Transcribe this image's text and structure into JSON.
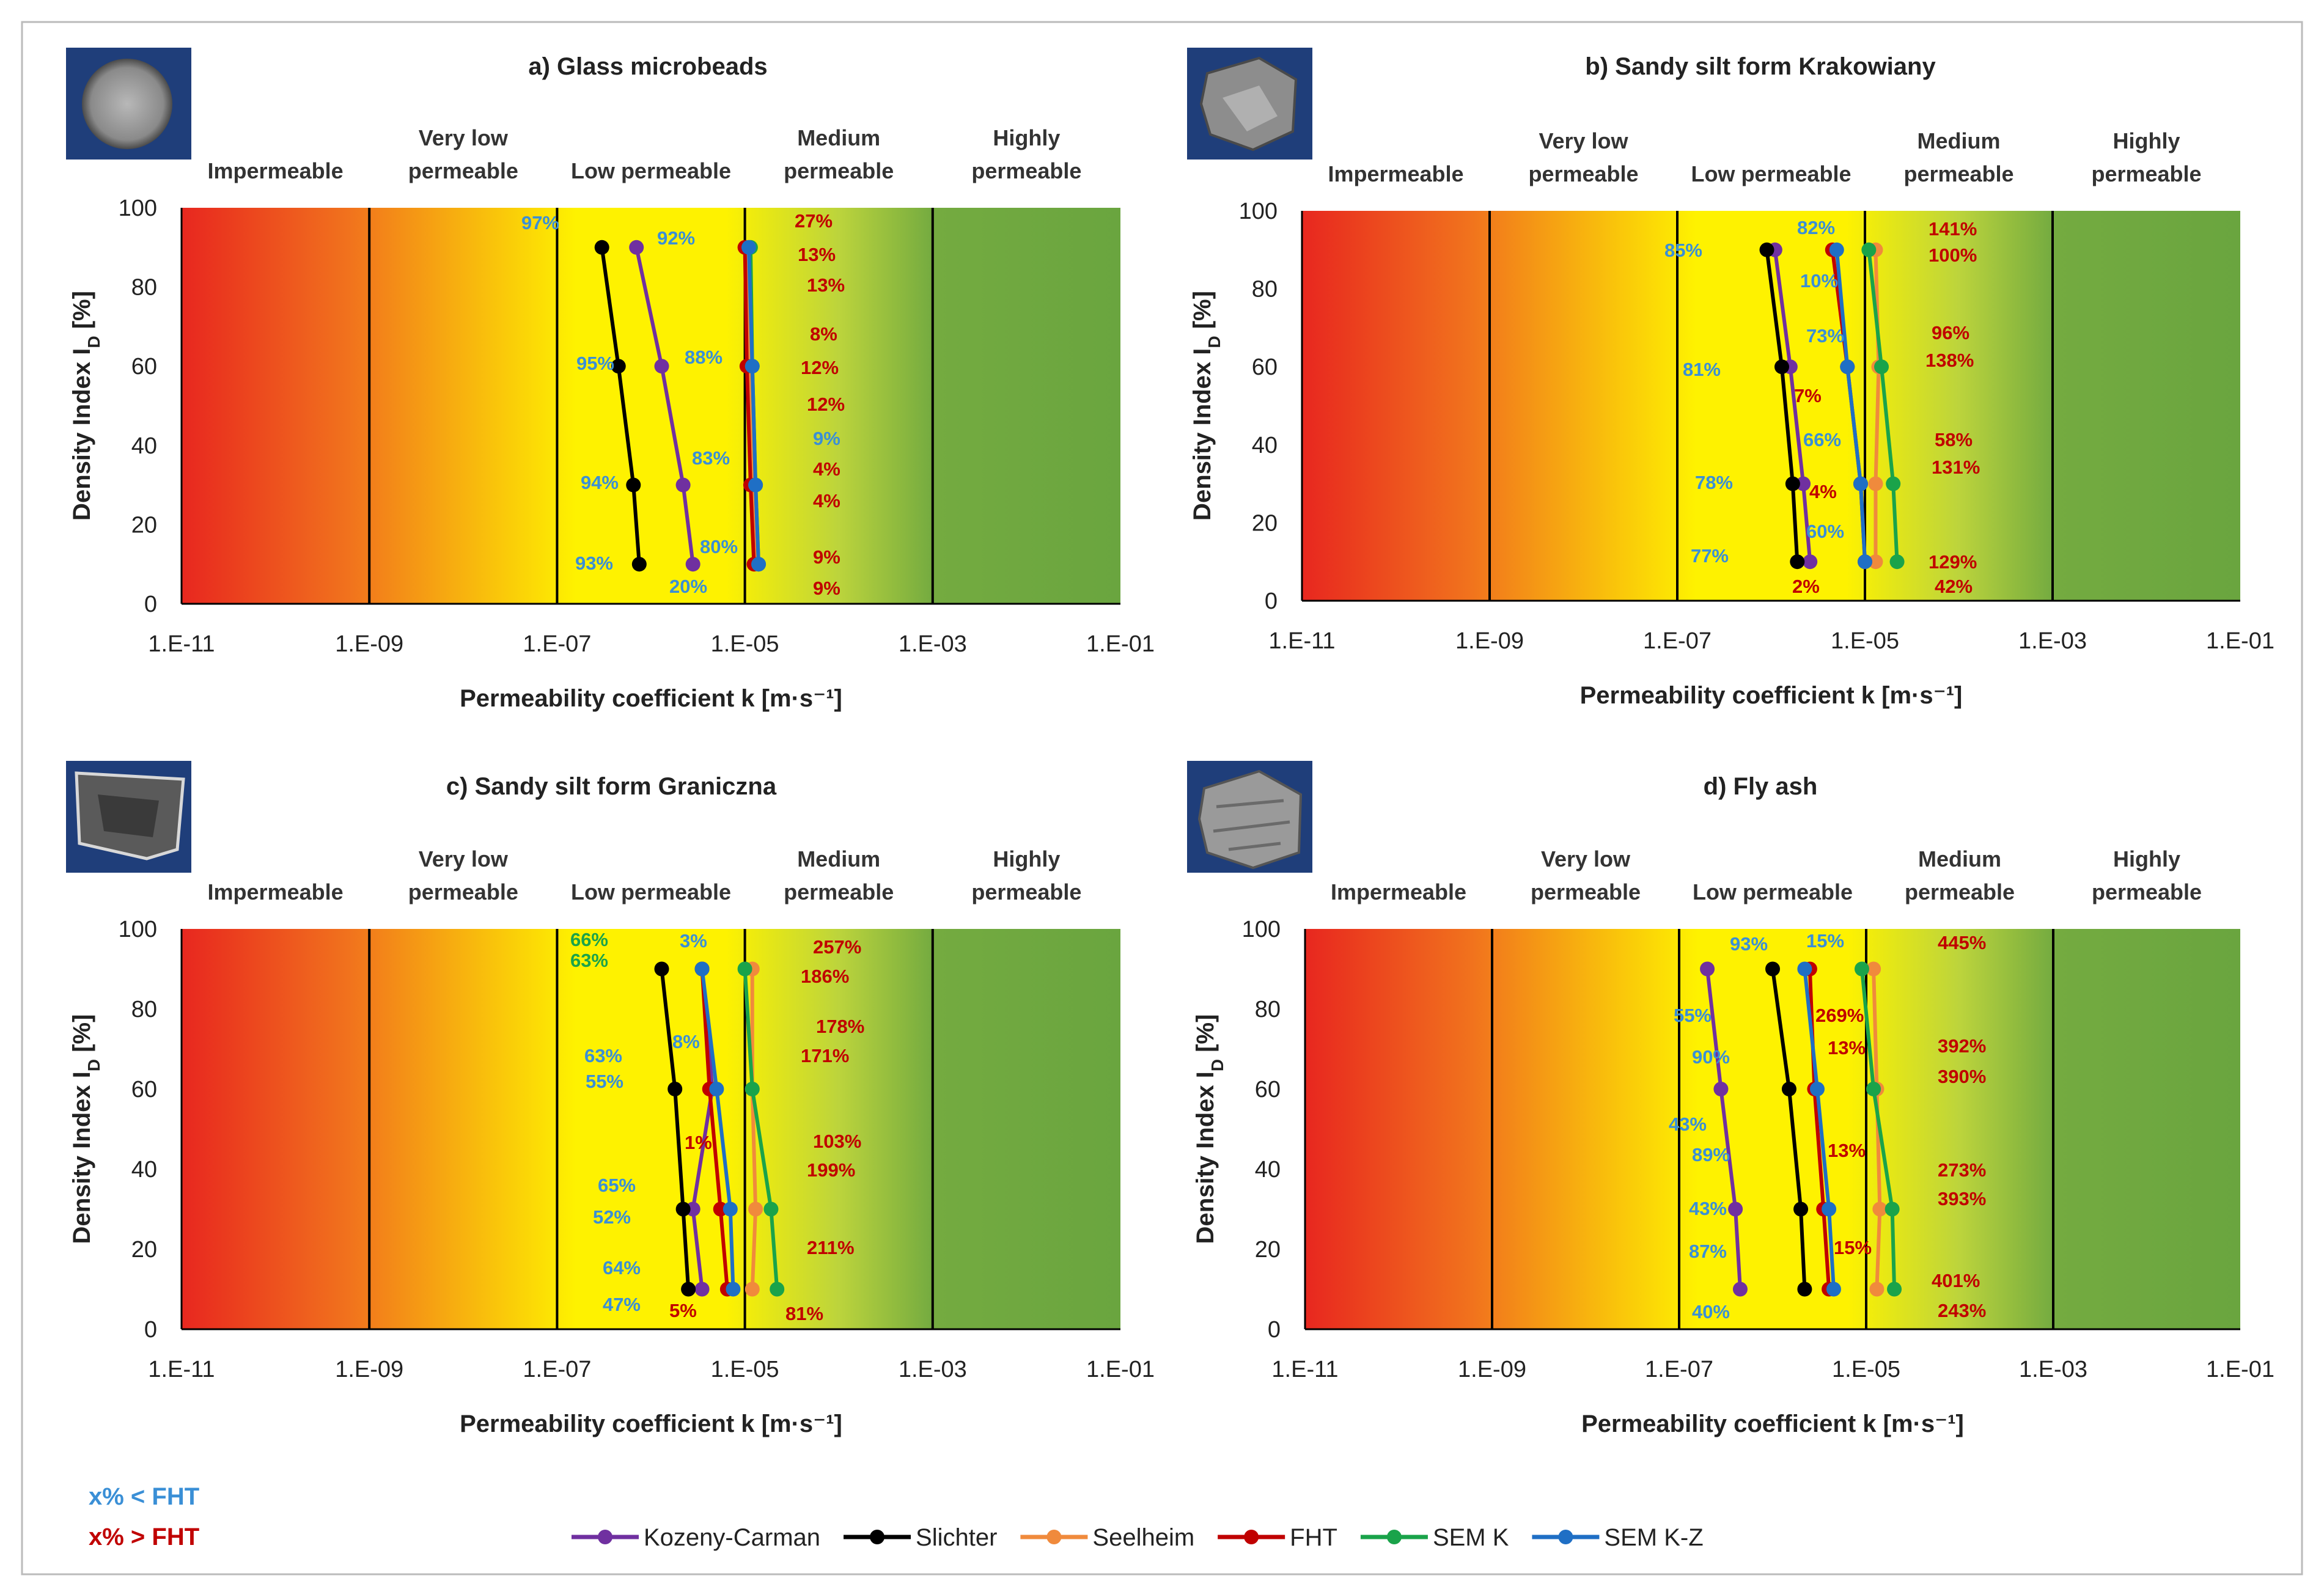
{
  "legend": {
    "below_note": "x% < FHT",
    "above_note": "x% > FHT",
    "below_color": "#3a8fd6",
    "above_color": "#c00000"
  },
  "colors": {
    "Kozeny-Carman": "#7030a0",
    "Slichter": "#000000",
    "Seelheim": "#f08a3c",
    "FHT": "#c00000",
    "SEM K": "#1aa34a",
    "SEM K-Z": "#1f6fc5"
  },
  "series_order": [
    "Kozeny-Carman",
    "Slichter",
    "Seelheim",
    "FHT",
    "SEM K",
    "SEM K-Z"
  ],
  "chart_data": [
    {
      "type": "line",
      "id": "a",
      "title": "a)  Glass microbeads",
      "xlabel": "Permeability coefficient k [m·s⁻¹]",
      "ylabel": "Density Index I_D [%]",
      "xscale": "log",
      "xlim": [
        1e-11,
        0.1
      ],
      "ylim": [
        0,
        100
      ],
      "x_ticks": [
        "1.E-11",
        "1.E-09",
        "1.E-07",
        "1.E-05",
        "1.E-03",
        "1.E-01"
      ],
      "y_ticks": [
        "0",
        "20",
        "40",
        "60",
        "80",
        "100"
      ],
      "zones": [
        "Impermeable",
        "Very low|permeable",
        "Low permeable",
        "Medium|permeable",
        "Highly|permeable"
      ],
      "y": [
        90,
        60,
        30,
        10
      ],
      "series": [
        {
          "name": "Kozeny-Carman",
          "x": [
            7e-07,
            1.3e-06,
            2.2e-06,
            2.8e-06
          ]
        },
        {
          "name": "Slichter",
          "x": [
            3e-07,
            4.5e-07,
            6.5e-07,
            7.5e-07
          ]
        },
        {
          "name": "Seelheim",
          "x": [
            1.1e-05,
            1.1e-05,
            1.2e-05,
            1.3e-05
          ]
        },
        {
          "name": "FHT",
          "x": [
            1e-05,
            1.05e-05,
            1.15e-05,
            1.25e-05
          ]
        },
        {
          "name": "SEM K",
          "x": [
            1.15e-05,
            1.2e-05,
            1.3e-05,
            1.4e-05
          ]
        },
        {
          "name": "SEM K-Z",
          "x": [
            1.1e-05,
            1.2e-05,
            1.3e-05,
            1.4e-05
          ]
        }
      ],
      "annotations": [
        {
          "text": "97%",
          "color": "#3a8fd6"
        },
        {
          "text": "92%",
          "color": "#3a8fd6"
        },
        {
          "text": "95%",
          "color": "#3a8fd6"
        },
        {
          "text": "88%",
          "color": "#3a8fd6"
        },
        {
          "text": "94%",
          "color": "#3a8fd6"
        },
        {
          "text": "83%",
          "color": "#3a8fd6"
        },
        {
          "text": "93%",
          "color": "#3a8fd6"
        },
        {
          "text": "80%",
          "color": "#3a8fd6"
        },
        {
          "text": "20%",
          "color": "#3a8fd6"
        },
        {
          "text": "27%",
          "color": "#c00000"
        },
        {
          "text": "13%",
          "color": "#c00000"
        },
        {
          "text": "13%",
          "color": "#c00000"
        },
        {
          "text": "8%",
          "color": "#c00000"
        },
        {
          "text": "12%",
          "color": "#c00000"
        },
        {
          "text": "12%",
          "color": "#c00000"
        },
        {
          "text": "9%",
          "color": "#3a8fd6"
        },
        {
          "text": "4%",
          "color": "#c00000"
        },
        {
          "text": "4%",
          "color": "#c00000"
        },
        {
          "text": "9%",
          "color": "#c00000"
        },
        {
          "text": "9%",
          "color": "#c00000"
        }
      ]
    },
    {
      "type": "line",
      "id": "b",
      "title": "b)  Sandy silt form Krakowiany",
      "xlabel": "Permeability coefficient k [m·s⁻¹]",
      "ylabel": "Density Index I_D [%]",
      "xscale": "log",
      "xlim": [
        1e-11,
        0.1
      ],
      "ylim": [
        0,
        100
      ],
      "x_ticks": [
        "1.E-11",
        "1.E-09",
        "1.E-07",
        "1.E-05",
        "1.E-03",
        "1.E-01"
      ],
      "y_ticks": [
        "0",
        "20",
        "40",
        "60",
        "80",
        "100"
      ],
      "zones": [
        "Impermeable",
        "Very low|permeable",
        "Low permeable",
        "Medium|permeable",
        "Highly|permeable"
      ],
      "y": [
        90,
        60,
        30,
        10
      ],
      "series": [
        {
          "name": "Kozeny-Carman",
          "x": [
            1.1e-06,
            1.6e-06,
            2.2e-06,
            2.6e-06
          ]
        },
        {
          "name": "Slichter",
          "x": [
            9e-07,
            1.3e-06,
            1.7e-06,
            1.9e-06
          ]
        },
        {
          "name": "Seelheim",
          "x": [
            1.3e-05,
            1.4e-05,
            1.3e-05,
            1.3e-05
          ]
        },
        {
          "name": "FHT",
          "x": [
            4.5e-06,
            6.5e-06,
            9e-06,
            1e-05
          ]
        },
        {
          "name": "SEM K",
          "x": [
            1.1e-05,
            1.5e-05,
            2e-05,
            2.2e-05
          ]
        },
        {
          "name": "SEM K-Z",
          "x": [
            5e-06,
            6.5e-06,
            9e-06,
            1e-05
          ]
        }
      ],
      "annotations": [
        {
          "text": "85%",
          "color": "#3a8fd6"
        },
        {
          "text": "82%",
          "color": "#3a8fd6"
        },
        {
          "text": "10%",
          "color": "#3a8fd6"
        },
        {
          "text": "81%",
          "color": "#3a8fd6"
        },
        {
          "text": "73%",
          "color": "#3a8fd6"
        },
        {
          "text": "7%",
          "color": "#c00000"
        },
        {
          "text": "78%",
          "color": "#3a8fd6"
        },
        {
          "text": "66%",
          "color": "#3a8fd6"
        },
        {
          "text": "4%",
          "color": "#c00000"
        },
        {
          "text": "77%",
          "color": "#3a8fd6"
        },
        {
          "text": "60%",
          "color": "#3a8fd6"
        },
        {
          "text": "2%",
          "color": "#c00000"
        },
        {
          "text": "141%",
          "color": "#c00000"
        },
        {
          "text": "100%",
          "color": "#c00000"
        },
        {
          "text": "96%",
          "color": "#c00000"
        },
        {
          "text": "138%",
          "color": "#c00000"
        },
        {
          "text": "58%",
          "color": "#c00000"
        },
        {
          "text": "131%",
          "color": "#c00000"
        },
        {
          "text": "129%",
          "color": "#c00000"
        },
        {
          "text": "42%",
          "color": "#c00000"
        }
      ]
    },
    {
      "type": "line",
      "id": "c",
      "title": "c)  Sandy silt form Graniczna",
      "xlabel": "Permeability coefficient k [m·s⁻¹]",
      "ylabel": "Density Index I_D [%]",
      "xscale": "log",
      "xlim": [
        1e-11,
        0.1
      ],
      "ylim": [
        0,
        100
      ],
      "x_ticks": [
        "1.E-11",
        "1.E-09",
        "1.E-07",
        "1.E-05",
        "1.E-03",
        "1.E-01"
      ],
      "y_ticks": [
        "0",
        "20",
        "40",
        "60",
        "80",
        "100"
      ],
      "zones": [
        "Impermeable",
        "Very low|permeable",
        "Low permeable",
        "Medium|permeable",
        "Highly|permeable"
      ],
      "y": [
        90,
        60,
        30,
        10
      ],
      "series": [
        {
          "name": "Kozeny-Carman",
          "x": [
            3.5e-06,
            4.5e-06,
            2.8e-06,
            3.5e-06
          ]
        },
        {
          "name": "Slichter",
          "x": [
            1.3e-06,
            1.8e-06,
            2.2e-06,
            2.5e-06
          ]
        },
        {
          "name": "Seelheim",
          "x": [
            1.2e-05,
            1.2e-05,
            1.3e-05,
            1.2e-05
          ]
        },
        {
          "name": "FHT",
          "x": [
            3.5e-06,
            4.2e-06,
            5.5e-06,
            6.5e-06
          ]
        },
        {
          "name": "SEM K",
          "x": [
            1e-05,
            1.2e-05,
            1.9e-05,
            2.2e-05
          ]
        },
        {
          "name": "SEM K-Z",
          "x": [
            3.5e-06,
            5e-06,
            7e-06,
            7.5e-06
          ]
        }
      ],
      "annotations": [
        {
          "text": "66%",
          "color": "#1aa34a"
        },
        {
          "text": "63%",
          "color": "#1aa34a"
        },
        {
          "text": "3%",
          "color": "#3a8fd6"
        },
        {
          "text": "63%",
          "color": "#3a8fd6"
        },
        {
          "text": "55%",
          "color": "#3a8fd6"
        },
        {
          "text": "8%",
          "color": "#3a8fd6"
        },
        {
          "text": "1%",
          "color": "#c00000"
        },
        {
          "text": "65%",
          "color": "#3a8fd6"
        },
        {
          "text": "52%",
          "color": "#3a8fd6"
        },
        {
          "text": "64%",
          "color": "#3a8fd6"
        },
        {
          "text": "47%",
          "color": "#3a8fd6"
        },
        {
          "text": "5%",
          "color": "#c00000"
        },
        {
          "text": "257%",
          "color": "#c00000"
        },
        {
          "text": "186%",
          "color": "#c00000"
        },
        {
          "text": "178%",
          "color": "#c00000"
        },
        {
          "text": "171%",
          "color": "#c00000"
        },
        {
          "text": "103%",
          "color": "#c00000"
        },
        {
          "text": "199%",
          "color": "#c00000"
        },
        {
          "text": "211%",
          "color": "#c00000"
        },
        {
          "text": "81%",
          "color": "#c00000"
        }
      ]
    },
    {
      "type": "line",
      "id": "d",
      "title": "d)  Fly ash",
      "xlabel": "Permeability coefficient k [m·s⁻¹]",
      "ylabel": "Density Index I_D [%]",
      "xscale": "log",
      "xlim": [
        1e-11,
        0.1
      ],
      "ylim": [
        0,
        100
      ],
      "x_ticks": [
        "1.E-11",
        "1.E-09",
        "1.E-07",
        "1.E-05",
        "1.E-03",
        "1.E-01"
      ],
      "y_ticks": [
        "0",
        "20",
        "40",
        "60",
        "80",
        "100"
      ],
      "zones": [
        "Impermeable",
        "Very low|permeable",
        "Low permeable",
        "Medium|permeable",
        "Highly|permeable"
      ],
      "y": [
        90,
        60,
        30,
        10
      ],
      "series": [
        {
          "name": "Kozeny-Carman",
          "x": [
            2e-07,
            2.8e-07,
            4e-07,
            4.5e-07
          ]
        },
        {
          "name": "Slichter",
          "x": [
            1e-06,
            1.5e-06,
            2e-06,
            2.2e-06
          ]
        },
        {
          "name": "Seelheim",
          "x": [
            1.2e-05,
            1.3e-05,
            1.4e-05,
            1.3e-05
          ]
        },
        {
          "name": "FHT",
          "x": [
            2.5e-06,
            2.8e-06,
            3.5e-06,
            4e-06
          ]
        },
        {
          "name": "SEM K",
          "x": [
            9e-06,
            1.2e-05,
            1.9e-05,
            2e-05
          ]
        },
        {
          "name": "SEM K-Z",
          "x": [
            2.2e-06,
            3e-06,
            4e-06,
            4.5e-06
          ]
        }
      ],
      "annotations": [
        {
          "text": "93%",
          "color": "#3a8fd6"
        },
        {
          "text": "15%",
          "color": "#3a8fd6"
        },
        {
          "text": "55%",
          "color": "#3a8fd6"
        },
        {
          "text": "269%",
          "color": "#c00000"
        },
        {
          "text": "90%",
          "color": "#3a8fd6"
        },
        {
          "text": "13%",
          "color": "#c00000"
        },
        {
          "text": "43%",
          "color": "#3a8fd6"
        },
        {
          "text": "89%",
          "color": "#3a8fd6"
        },
        {
          "text": "13%",
          "color": "#c00000"
        },
        {
          "text": "43%",
          "color": "#3a8fd6"
        },
        {
          "text": "87%",
          "color": "#3a8fd6"
        },
        {
          "text": "15%",
          "color": "#c00000"
        },
        {
          "text": "40%",
          "color": "#3a8fd6"
        },
        {
          "text": "445%",
          "color": "#c00000"
        },
        {
          "text": "392%",
          "color": "#c00000"
        },
        {
          "text": "390%",
          "color": "#c00000"
        },
        {
          "text": "273%",
          "color": "#c00000"
        },
        {
          "text": "393%",
          "color": "#c00000"
        },
        {
          "text": "401%",
          "color": "#c00000"
        },
        {
          "text": "243%",
          "color": "#c00000"
        }
      ]
    }
  ]
}
